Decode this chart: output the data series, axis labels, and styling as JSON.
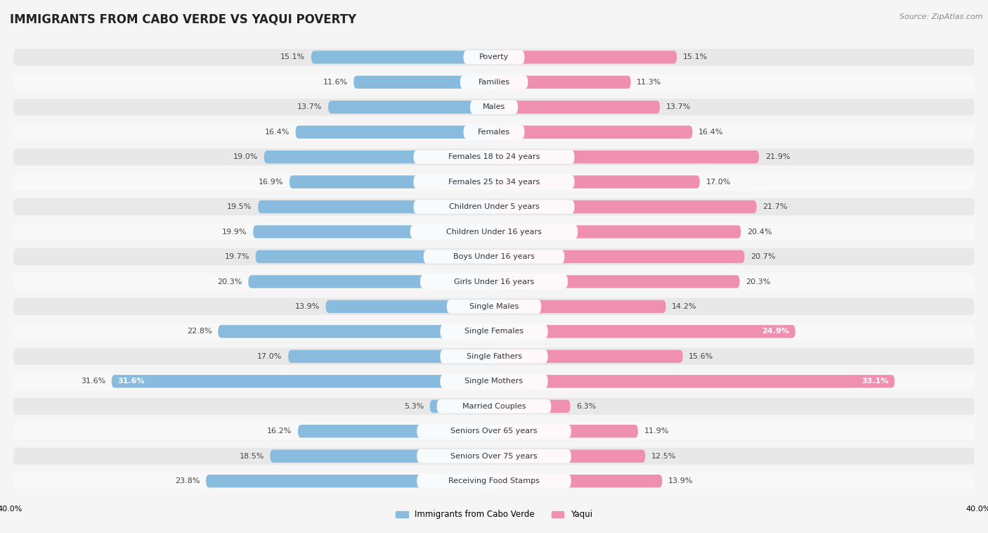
{
  "title": "IMMIGRANTS FROM CABO VERDE VS YAQUI POVERTY",
  "source": "Source: ZipAtlas.com",
  "categories": [
    "Poverty",
    "Families",
    "Males",
    "Females",
    "Females 18 to 24 years",
    "Females 25 to 34 years",
    "Children Under 5 years",
    "Children Under 16 years",
    "Boys Under 16 years",
    "Girls Under 16 years",
    "Single Males",
    "Single Females",
    "Single Fathers",
    "Single Mothers",
    "Married Couples",
    "Seniors Over 65 years",
    "Seniors Over 75 years",
    "Receiving Food Stamps"
  ],
  "left_values": [
    15.1,
    11.6,
    13.7,
    16.4,
    19.0,
    16.9,
    19.5,
    19.9,
    19.7,
    20.3,
    13.9,
    22.8,
    17.0,
    31.6,
    5.3,
    16.2,
    18.5,
    23.8
  ],
  "right_values": [
    15.1,
    11.3,
    13.7,
    16.4,
    21.9,
    17.0,
    21.7,
    20.4,
    20.7,
    20.3,
    14.2,
    24.9,
    15.6,
    33.1,
    6.3,
    11.9,
    12.5,
    13.9
  ],
  "left_color": "#88bbdd",
  "right_color": "#f090b0",
  "left_label": "Immigrants from Cabo Verde",
  "right_label": "Yaqui",
  "x_max": 40.0,
  "bg_color": "#f5f5f5",
  "row_bg_light": "#f0f0f0",
  "row_bg_dark": "#e0e0e0",
  "title_fontsize": 12,
  "label_fontsize": 8,
  "value_fontsize": 8,
  "source_fontsize": 8
}
